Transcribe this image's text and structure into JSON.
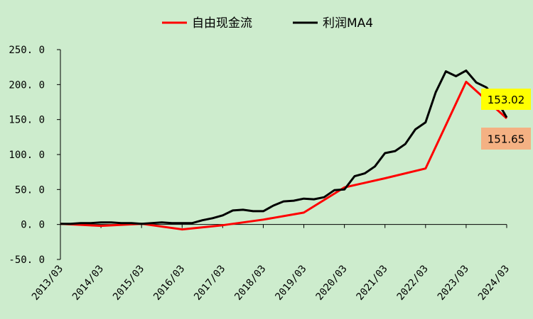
{
  "chart_data": {
    "type": "line",
    "title": "",
    "xlabel": "",
    "ylabel": "",
    "ylim": [
      -50,
      250
    ],
    "yticks": [
      -50,
      0,
      50,
      100,
      150,
      200,
      250
    ],
    "ytick_labels": [
      "-50. 0",
      "0. 0",
      "50. 0",
      "100. 0",
      "150. 0",
      "200. 0",
      "250. 0"
    ],
    "xlim": [
      2013.0,
      2024.0
    ],
    "xtick_labels": [
      "2013/03",
      "2014/03",
      "2015/03",
      "2016/03",
      "2017/03",
      "2018/03",
      "2019/03",
      "2020/03",
      "2021/03",
      "2022/03",
      "2023/03",
      "2024/03"
    ],
    "grid": false,
    "legend_position": "top",
    "series": [
      {
        "name": "自由现金流",
        "color": "#ff0000",
        "points": [
          [
            2013.0,
            1
          ],
          [
            2014.0,
            -2
          ],
          [
            2015.0,
            1
          ],
          [
            2016.0,
            -7
          ],
          [
            2017.0,
            -1
          ],
          [
            2018.0,
            7
          ],
          [
            2019.0,
            17
          ],
          [
            2020.0,
            53
          ],
          [
            2021.0,
            66
          ],
          [
            2022.0,
            80
          ],
          [
            2023.0,
            204
          ],
          [
            2024.0,
            151.65
          ]
        ]
      },
      {
        "name": "利润MA4",
        "color": "#000000",
        "points": [
          [
            2013.0,
            1
          ],
          [
            2013.25,
            1
          ],
          [
            2013.5,
            2
          ],
          [
            2013.75,
            2
          ],
          [
            2014.0,
            3
          ],
          [
            2014.25,
            3
          ],
          [
            2014.5,
            2
          ],
          [
            2014.75,
            2
          ],
          [
            2015.0,
            1
          ],
          [
            2015.25,
            2
          ],
          [
            2015.5,
            3
          ],
          [
            2015.75,
            2
          ],
          [
            2016.0,
            2
          ],
          [
            2016.25,
            2
          ],
          [
            2016.5,
            6
          ],
          [
            2016.75,
            9
          ],
          [
            2017.0,
            13
          ],
          [
            2017.25,
            20
          ],
          [
            2017.5,
            21
          ],
          [
            2017.75,
            19
          ],
          [
            2018.0,
            19
          ],
          [
            2018.25,
            27
          ],
          [
            2018.5,
            33
          ],
          [
            2018.75,
            34
          ],
          [
            2019.0,
            37
          ],
          [
            2019.25,
            36
          ],
          [
            2019.5,
            39
          ],
          [
            2019.75,
            49
          ],
          [
            2020.0,
            50
          ],
          [
            2020.25,
            69
          ],
          [
            2020.5,
            73
          ],
          [
            2020.75,
            83
          ],
          [
            2021.0,
            102
          ],
          [
            2021.25,
            105
          ],
          [
            2021.5,
            115
          ],
          [
            2021.75,
            136
          ],
          [
            2022.0,
            146
          ],
          [
            2022.25,
            189
          ],
          [
            2022.5,
            219
          ],
          [
            2022.75,
            212
          ],
          [
            2023.0,
            220
          ],
          [
            2023.25,
            203
          ],
          [
            2023.5,
            196
          ],
          [
            2023.75,
            178
          ],
          [
            2024.0,
            153.02
          ]
        ]
      }
    ],
    "annotations": [
      {
        "text": "153.02",
        "series": "利润MA4",
        "background": "#ffff00"
      },
      {
        "text": "151.65",
        "series": "自由现金流",
        "background": "#f4b183"
      }
    ]
  }
}
